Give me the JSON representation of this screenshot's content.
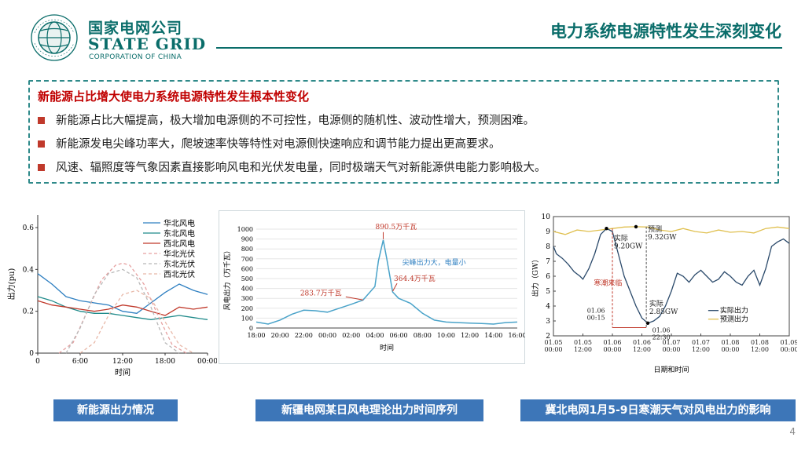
{
  "header": {
    "logo_cn": "国家电网公司",
    "logo_en": "STATE GRID",
    "logo_sub": "CORPORATION OF CHINA",
    "slide_title": "电力系统电源特性发生深刻变化"
  },
  "summary": {
    "heading": "新能源占比增大使电力系统电源特性发生根本性变化",
    "bullets": [
      "新能源占比大幅提高，极大增加电源侧的不可控性，电源侧的随机性、波动性增大，预测困难。",
      "新能源发电尖峰功率大，爬坡速率快等特性对电源侧快速响应和调节能力提出更高要求。",
      "风速、辐照度等气象因素直接影响风电和光伏发电量，同时极端天气对新能源供电能力影响极大。"
    ]
  },
  "captions": [
    "新能源出力情况",
    "新疆电网某日风电理论出力时间序列",
    "冀北电网1月5-9日寒潮天气对风电出力的影响"
  ],
  "page_number": "4",
  "colors": {
    "brand": "#0a6d6a",
    "heading_red": "#c00000",
    "bullet": "#c0392b",
    "caption_bg": "#3d76b8"
  },
  "chart_data": [
    {
      "type": "line",
      "xlabel": "时间",
      "ylabel": "出力(pu)",
      "x_ticks": [
        "0",
        "6:00",
        "12:00",
        "18:00",
        "00:00"
      ],
      "y_ticks": [
        "0",
        "0.2",
        "0.4",
        "0.6"
      ],
      "xlim": [
        0,
        24
      ],
      "ylim": [
        0,
        0.66
      ],
      "series": [
        {
          "name": "华北风电",
          "color": "#2e7fc1",
          "dash": "",
          "x": [
            0,
            2,
            4,
            6,
            8,
            10,
            12,
            14,
            16,
            18,
            20,
            22,
            24
          ],
          "y": [
            0.38,
            0.33,
            0.27,
            0.25,
            0.24,
            0.23,
            0.2,
            0.19,
            0.24,
            0.29,
            0.33,
            0.3,
            0.28
          ]
        },
        {
          "name": "东北风电",
          "color": "#1f8a8a",
          "dash": "",
          "x": [
            0,
            2,
            4,
            6,
            8,
            10,
            12,
            14,
            16,
            18,
            20,
            22,
            24
          ],
          "y": [
            0.27,
            0.25,
            0.22,
            0.2,
            0.19,
            0.19,
            0.18,
            0.17,
            0.16,
            0.17,
            0.18,
            0.17,
            0.16
          ]
        },
        {
          "name": "西北风电",
          "color": "#c0392b",
          "dash": "",
          "x": [
            0,
            2,
            4,
            6,
            8,
            10,
            12,
            14,
            16,
            18,
            20,
            22,
            24
          ],
          "y": [
            0.25,
            0.23,
            0.22,
            0.21,
            0.2,
            0.21,
            0.23,
            0.22,
            0.2,
            0.18,
            0.22,
            0.21,
            0.22
          ]
        },
        {
          "name": "华北光伏",
          "color": "#e6a0a0",
          "dash": "4,3",
          "x": [
            3,
            5,
            7,
            9,
            11,
            12,
            13,
            15,
            17,
            19,
            21
          ],
          "y": [
            0,
            0.05,
            0.2,
            0.35,
            0.42,
            0.43,
            0.42,
            0.33,
            0.18,
            0.04,
            0
          ]
        },
        {
          "name": "东北光伏",
          "color": "#b8b8b8",
          "dash": "4,3",
          "x": [
            4,
            6,
            8,
            10,
            12,
            14,
            16,
            18,
            20
          ],
          "y": [
            0,
            0.12,
            0.28,
            0.38,
            0.4,
            0.36,
            0.22,
            0.05,
            0
          ]
        },
        {
          "name": "西北光伏",
          "color": "#e8b8a8",
          "dash": "4,3",
          "x": [
            6,
            8,
            10,
            12,
            14,
            16,
            18,
            20,
            22
          ],
          "y": [
            0,
            0.05,
            0.18,
            0.28,
            0.3,
            0.26,
            0.15,
            0.04,
            0
          ]
        }
      ]
    },
    {
      "type": "line",
      "xlabel": "时间",
      "ylabel": "风电出力（万千瓦）",
      "x_ticks": [
        "18:00",
        "20:00",
        "22:00",
        "00:00",
        "02:00",
        "04:00",
        "06:00",
        "08:00",
        "10:00",
        "12:00",
        "14:00",
        "16:00"
      ],
      "y_ticks": [
        "0",
        "100",
        "200",
        "300",
        "400",
        "500",
        "600",
        "700",
        "800",
        "900",
        "1000"
      ],
      "ylim": [
        0,
        1000
      ],
      "series": [
        {
          "name": "",
          "color": "#4aa3c9",
          "dash": "",
          "x": [
            0,
            1,
            2,
            3,
            4,
            5,
            6,
            7,
            8,
            9,
            10,
            10.3,
            10.7,
            11,
            11.5,
            12,
            13,
            14,
            15,
            16,
            17,
            18,
            19,
            20,
            21,
            22
          ],
          "y": [
            60,
            40,
            80,
            140,
            180,
            175,
            160,
            200,
            240,
            283.7,
            420,
            680,
            890.5,
            700,
            364.4,
            300,
            250,
            150,
            80,
            60,
            55,
            50,
            45,
            40,
            55,
            60
          ]
        }
      ],
      "annotations": [
        "890.5万千瓦",
        "283.7万千瓦",
        "364.4万千瓦",
        "尖峰出力大，电量小"
      ]
    },
    {
      "type": "line",
      "xlabel": "日期和时间",
      "ylabel": "出力（GW）",
      "x_ticks": [
        "01.05\n00:00",
        "01.05\n12:00",
        "01.06\n00:00",
        "01.06\n12:00",
        "01.07\n00:00",
        "01.07\n12:00",
        "01.08\n00:00",
        "01.08\n12:00",
        "01.09\n00:00"
      ],
      "y_ticks": [
        "2",
        "3",
        "4",
        "5",
        "6",
        "7",
        "8",
        "9",
        "10"
      ],
      "ylim": [
        2,
        10
      ],
      "series": [
        {
          "name": "实际出力",
          "color": "#2b4a6b",
          "dash": "",
          "x": [
            0,
            0.1,
            0.3,
            0.5,
            0.7,
            0.9,
            1.0,
            1.2,
            1.4,
            1.6,
            1.8,
            2.0,
            2.2,
            2.4,
            2.6,
            2.8,
            3.0,
            3.2,
            3.4,
            3.6,
            3.8,
            4.0,
            4.2,
            4.4,
            4.6,
            4.8,
            5.0,
            5.2,
            5.4,
            5.6,
            5.8,
            6.0,
            6.2,
            6.4,
            6.6,
            6.8,
            7.0,
            7.2,
            7.4,
            7.6,
            7.8,
            8.0
          ],
          "y": [
            8.0,
            7.5,
            7.2,
            6.8,
            6.3,
            6.0,
            5.8,
            6.5,
            7.5,
            8.8,
            9.2,
            9.0,
            7.5,
            6.0,
            5.0,
            4.0,
            3.2,
            2.85,
            3.0,
            3.3,
            4.0,
            5.0,
            6.2,
            6.0,
            5.6,
            6.1,
            6.4,
            6.0,
            5.6,
            5.8,
            6.3,
            6.0,
            5.6,
            5.4,
            6.0,
            6.4,
            5.4,
            6.5,
            8.0,
            8.3,
            8.5,
            8.2
          ]
        },
        {
          "name": "预测出力",
          "color": "#e0c050",
          "dash": "",
          "x": [
            0,
            0.4,
            0.8,
            1.2,
            1.6,
            2.0,
            2.4,
            2.8,
            3.2,
            3.6,
            4.0,
            4.4,
            4.8,
            5.2,
            5.6,
            6.0,
            6.4,
            6.8,
            7.2,
            7.6,
            8.0
          ],
          "y": [
            9.0,
            8.8,
            9.1,
            9.0,
            9.1,
            9.2,
            9.3,
            9.32,
            9.3,
            9.1,
            9.0,
            9.2,
            9.0,
            8.9,
            9.1,
            8.95,
            9.0,
            8.9,
            9.2,
            9.3,
            9.2
          ]
        }
      ],
      "annotations": [
        "实际\n9.20GW",
        "预测\n9.32GW",
        "寒潮来临",
        "实际\n2.85GW",
        "01.06\n00:15",
        "01.06\n22:30"
      ]
    }
  ]
}
